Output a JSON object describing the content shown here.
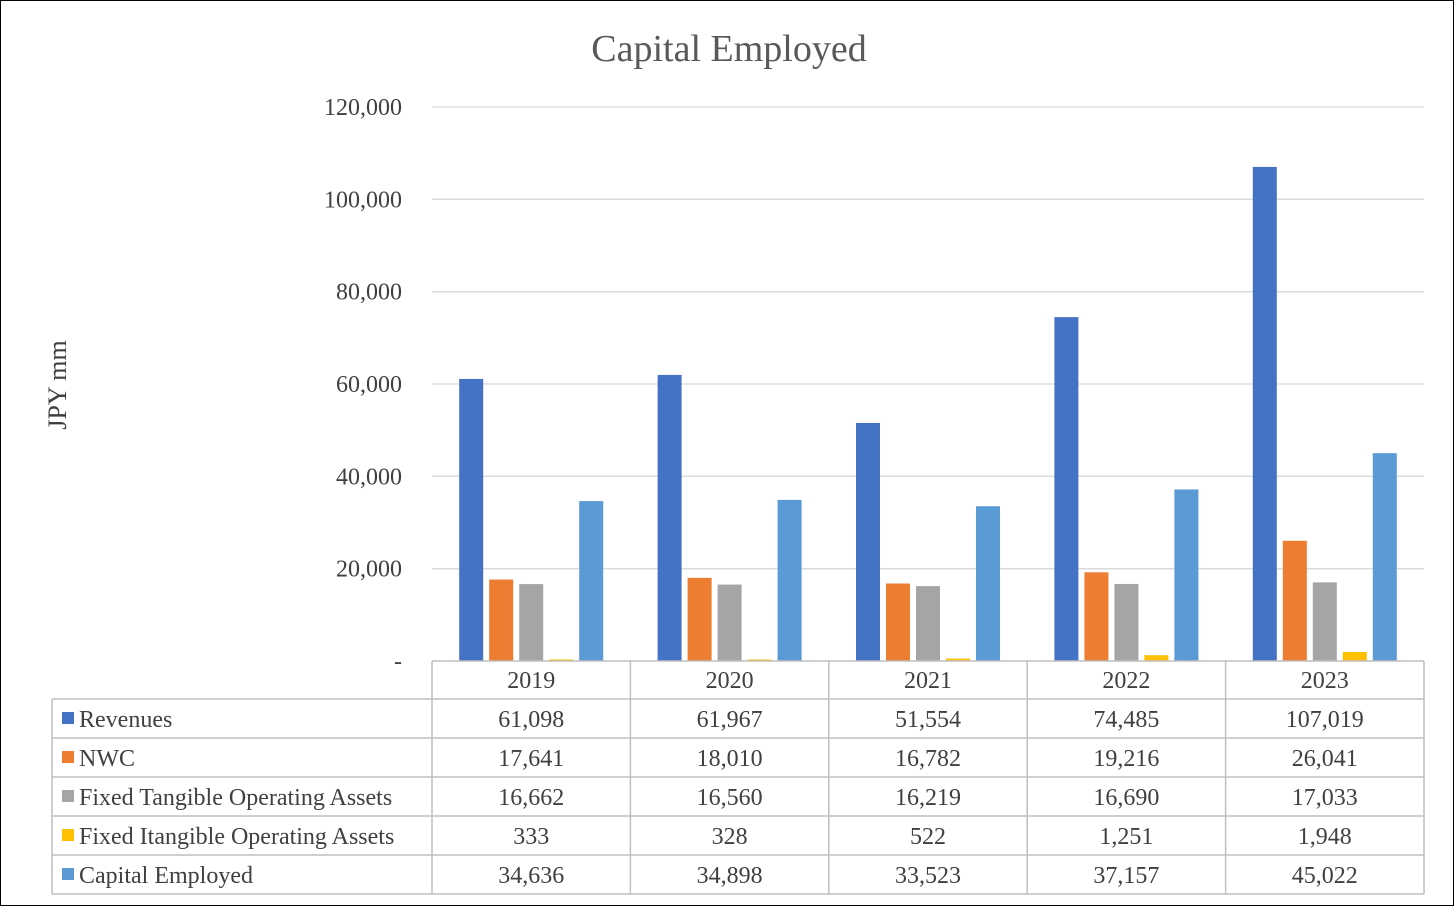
{
  "chart_data": {
    "type": "bar",
    "title": "Capital Employed",
    "ylabel": "JPY mm",
    "xlabel": "",
    "ylim": [
      0,
      120000
    ],
    "yticks": [
      0,
      20000,
      40000,
      60000,
      80000,
      100000,
      120000
    ],
    "ytick_labels": [
      "-",
      "20,000",
      "40,000",
      "60,000",
      "80,000",
      "100,000",
      "120,000"
    ],
    "grid": true,
    "legend": "data-table-below",
    "categories": [
      "2019",
      "2020",
      "2021",
      "2022",
      "2023"
    ],
    "series": [
      {
        "name": "Revenues",
        "color": "#4472C4",
        "values": [
          61098,
          61967,
          51554,
          74485,
          107019
        ],
        "labels": [
          "61,098",
          "61,967",
          "51,554",
          "74,485",
          "107,019"
        ]
      },
      {
        "name": "NWC",
        "color": "#ED7D31",
        "values": [
          17641,
          18010,
          16782,
          19216,
          26041
        ],
        "labels": [
          "17,641",
          "18,010",
          "16,782",
          "19,216",
          "26,041"
        ]
      },
      {
        "name": "Fixed Tangible Operating Assets",
        "color": "#A5A5A5",
        "values": [
          16662,
          16560,
          16219,
          16690,
          17033
        ],
        "labels": [
          "16,662",
          "16,560",
          "16,219",
          "16,690",
          "17,033"
        ]
      },
      {
        "name": "Fixed Itangible Operating Assets",
        "color": "#FFC000",
        "values": [
          333,
          328,
          522,
          1251,
          1948
        ],
        "labels": [
          "333",
          "328",
          "522",
          "1,251",
          "1,948"
        ]
      },
      {
        "name": "Capital Employed",
        "color": "#5B9BD5",
        "values": [
          34636,
          34898,
          33523,
          37157,
          45022
        ],
        "labels": [
          "34,636",
          "34,898",
          "33,523",
          "37,157",
          "45,022"
        ]
      }
    ]
  }
}
